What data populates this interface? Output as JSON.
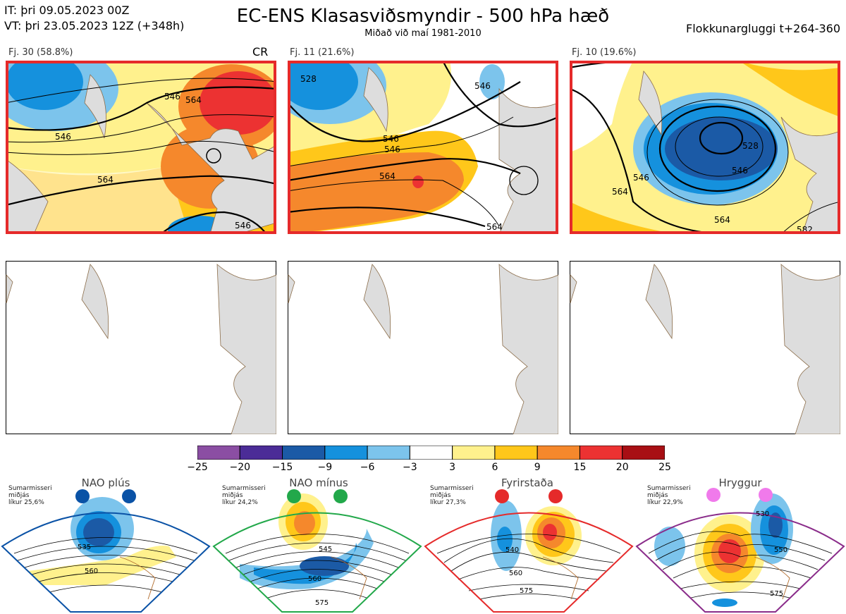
{
  "header": {
    "it": "IT: þri 09.05.2023 00Z",
    "vt": "VT: þri 23.05.2023 12Z  (+348h)",
    "title": "EC-ENS Klasasviðsmyndir - 500 hPa hæð",
    "subtitle": "Miðað við maí 1981-2010",
    "window": "Flokkunargluggi t+264-360"
  },
  "clusters": [
    {
      "label": "Fj. 30 (58.8%)",
      "tag": "CR",
      "contours": [
        "546",
        "564",
        "546",
        "564",
        "546"
      ]
    },
    {
      "label": "Fj. 11 (21.6%)",
      "tag": "",
      "contours": [
        "528",
        "546",
        "546",
        "564",
        "564",
        "546"
      ]
    },
    {
      "label": "Fj. 10 (19.6%)",
      "tag": "",
      "contours": [
        "546",
        "528",
        "546",
        "564",
        "564",
        "582"
      ]
    }
  ],
  "colorbar": {
    "ticks": [
      "−25",
      "−20",
      "−15",
      "−9",
      "−6",
      "−3",
      "3",
      "6",
      "9",
      "15",
      "20",
      "25"
    ],
    "colors": [
      "#8b4ea3",
      "#4b2c97",
      "#1b5aa6",
      "#1591dd",
      "#7cc4ec",
      "#ffffff",
      "#fff18d",
      "#ffc71a",
      "#f5882c",
      "#ec3232",
      "#a80f14"
    ]
  },
  "regimes": [
    {
      "name": "NAO plús",
      "season": "Sumarmisseri",
      "median": "miðjás",
      "prob": "líkur 25,6%",
      "dot_color": "#0a52a6",
      "frame_color": "#0a52a6",
      "contours": [
        "535",
        "560"
      ]
    },
    {
      "name": "NAO mínus",
      "season": "Sumarmisseri",
      "median": "miðjás",
      "prob": "líkur 24,2%",
      "dot_color": "#22a84a",
      "frame_color": "#22a84a",
      "contours": [
        "545",
        "560",
        "575"
      ]
    },
    {
      "name": "Fyrirstaða",
      "season": "Sumarmisseri",
      "median": "miðjás",
      "prob": "líkur 27,3%",
      "dot_color": "#e52a2a",
      "frame_color": "#e52a2a",
      "contours": [
        "540",
        "560",
        "575"
      ]
    },
    {
      "name": "Hryggur",
      "season": "Sumarmisseri",
      "median": "miðjás",
      "prob": "líkur 22,9%",
      "dot_color": "#f07aeb",
      "frame_color": "#8a2c8a",
      "contours": [
        "530",
        "550",
        "575"
      ]
    }
  ]
}
